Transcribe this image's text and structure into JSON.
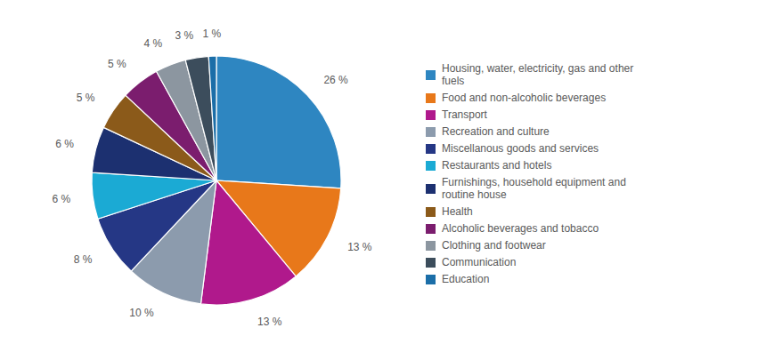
{
  "chart_data": {
    "type": "pie",
    "categories": [
      "Housing, water, electricity, gas and other\nfuels",
      "Food and non-alcoholic beverages",
      "Transport",
      "Recreation and culture",
      "Miscellanous goods and services",
      "Restaurants and hotels",
      "Furnishings, household equipment and\nroutine house",
      "Health",
      "Alcoholic beverages and tobacco",
      "Clothing and footwear",
      "Communication",
      "Education"
    ],
    "values": [
      26,
      13,
      13,
      10,
      8,
      6,
      6,
      5,
      5,
      4,
      3,
      1
    ],
    "value_labels": [
      "26 %",
      "13 %",
      "13 %",
      "10 %",
      "8 %",
      "6 %",
      "6 %",
      "5 %",
      "5 %",
      "4 %",
      "3 %",
      "1 %"
    ],
    "colors": [
      "#2E86C1",
      "#E8781A",
      "#B0198C",
      "#8C9BAD",
      "#253785",
      "#1BAAD4",
      "#1C3070",
      "#8B5A1A",
      "#7B1D6E",
      "#8C96A0",
      "#3C4D5C",
      "#1B6EA8"
    ],
    "data_labels": true,
    "legend": "right"
  }
}
